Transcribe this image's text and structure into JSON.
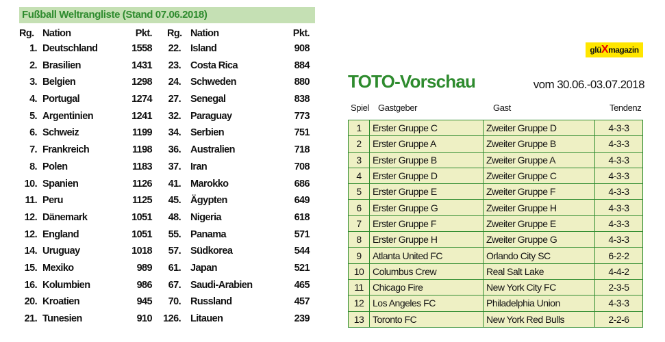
{
  "ranking": {
    "title": "Fußball Weltrangliste (Stand 07.06.2018)",
    "headers": {
      "rank": "Rg.",
      "nation": "Nation",
      "points": "Pkt."
    },
    "left": [
      {
        "rank": "1.",
        "nation": "Deutschland",
        "points": "1558"
      },
      {
        "rank": "2.",
        "nation": "Brasilien",
        "points": "1431"
      },
      {
        "rank": "3.",
        "nation": "Belgien",
        "points": "1298"
      },
      {
        "rank": "4.",
        "nation": "Portugal",
        "points": "1274"
      },
      {
        "rank": "5.",
        "nation": "Argentinien",
        "points": "1241"
      },
      {
        "rank": "6.",
        "nation": "Schweiz",
        "points": "1199"
      },
      {
        "rank": "7.",
        "nation": "Frankreich",
        "points": "1198"
      },
      {
        "rank": "8.",
        "nation": "Polen",
        "points": "1183"
      },
      {
        "rank": "10.",
        "nation": "Spanien",
        "points": "1126"
      },
      {
        "rank": "11.",
        "nation": "Peru",
        "points": "1125"
      },
      {
        "rank": "12.",
        "nation": "Dänemark",
        "points": "1051"
      },
      {
        "rank": "12.",
        "nation": "England",
        "points": "1051"
      },
      {
        "rank": "14.",
        "nation": "Uruguay",
        "points": "1018"
      },
      {
        "rank": "15.",
        "nation": "Mexiko",
        "points": "989"
      },
      {
        "rank": "16.",
        "nation": "Kolumbien",
        "points": "986"
      },
      {
        "rank": "20.",
        "nation": "Kroatien",
        "points": "945"
      },
      {
        "rank": "21.",
        "nation": "Tunesien",
        "points": "910"
      }
    ],
    "right": [
      {
        "rank": "22.",
        "nation": "Island",
        "points": "908"
      },
      {
        "rank": "23.",
        "nation": "Costa Rica",
        "points": "884"
      },
      {
        "rank": "24.",
        "nation": "Schweden",
        "points": "880"
      },
      {
        "rank": "27.",
        "nation": "Senegal",
        "points": "838"
      },
      {
        "rank": "32.",
        "nation": "Paraguay",
        "points": "773"
      },
      {
        "rank": "34.",
        "nation": "Serbien",
        "points": "751"
      },
      {
        "rank": "36.",
        "nation": "Australien",
        "points": "718"
      },
      {
        "rank": "37.",
        "nation": "Iran",
        "points": "708"
      },
      {
        "rank": "41.",
        "nation": "Marokko",
        "points": "686"
      },
      {
        "rank": "45.",
        "nation": "Ägypten",
        "points": "649"
      },
      {
        "rank": "48.",
        "nation": "Nigeria",
        "points": "618"
      },
      {
        "rank": "55.",
        "nation": "Panama",
        "points": "571"
      },
      {
        "rank": "57.",
        "nation": "Südkorea",
        "points": "544"
      },
      {
        "rank": "61.",
        "nation": "Japan",
        "points": "521"
      },
      {
        "rank": "67.",
        "nation": "Saudi-Arabien",
        "points": "465"
      },
      {
        "rank": "70.",
        "nation": "Russland",
        "points": "457"
      },
      {
        "rank": "126.",
        "nation": "Litauen",
        "points": "239"
      }
    ]
  },
  "logo": {
    "left": "glü",
    "x": "X",
    "right": "magazin",
    "bg_color": "#ffe600",
    "x_color": "#e60000"
  },
  "toto": {
    "title": "TOTO-Vorschau",
    "date": "vom 30.06.-03.07.2018",
    "headers": {
      "spiel": "Spiel",
      "gastgeber": "Gastgeber",
      "gast": "Gast",
      "tendenz": "Tendenz"
    },
    "rows": [
      {
        "spiel": "1",
        "gastgeber": "Erster Gruppe C",
        "gast": "Zweiter Gruppe D",
        "tendenz": "4-3-3"
      },
      {
        "spiel": "2",
        "gastgeber": "Erster Gruppe A",
        "gast": "Zweiter Gruppe B",
        "tendenz": "4-3-3"
      },
      {
        "spiel": "3",
        "gastgeber": "Erster Gruppe B",
        "gast": "Zweiter Gruppe A",
        "tendenz": "4-3-3"
      },
      {
        "spiel": "4",
        "gastgeber": "Erster Gruppe D",
        "gast": "Zweiter Gruppe C",
        "tendenz": "4-3-3"
      },
      {
        "spiel": "5",
        "gastgeber": "Erster Gruppe E",
        "gast": "Zweiter Gruppe F",
        "tendenz": "4-3-3"
      },
      {
        "spiel": "6",
        "gastgeber": "Erster Gruppe G",
        "gast": "Zweiter Gruppe H",
        "tendenz": "4-3-3"
      },
      {
        "spiel": "7",
        "gastgeber": "Erster Gruppe F",
        "gast": "Zweiter Gruppe E",
        "tendenz": "4-3-3"
      },
      {
        "spiel": "8",
        "gastgeber": "Erster Gruppe H",
        "gast": "Zweiter Gruppe G",
        "tendenz": "4-3-3"
      },
      {
        "spiel": "9",
        "gastgeber": "Atlanta United FC",
        "gast": "Orlando City SC",
        "tendenz": "6-2-2"
      },
      {
        "spiel": "10",
        "gastgeber": "Columbus Crew",
        "gast": "Real Salt Lake",
        "tendenz": "4-4-2"
      },
      {
        "spiel": "11",
        "gastgeber": "Chicago Fire",
        "gast": "New York City FC",
        "tendenz": "2-3-5"
      },
      {
        "spiel": "12",
        "gastgeber": "Los Angeles FC",
        "gast": "Philadelphia Union",
        "tendenz": "4-3-3"
      },
      {
        "spiel": "13",
        "gastgeber": "Toronto FC",
        "gast": "New York Red Bulls",
        "tendenz": "2-2-6"
      }
    ]
  },
  "colors": {
    "title_green": "#2e8b2e",
    "header_band": "#c5e0b4",
    "table_fill": "#eef0c4"
  }
}
